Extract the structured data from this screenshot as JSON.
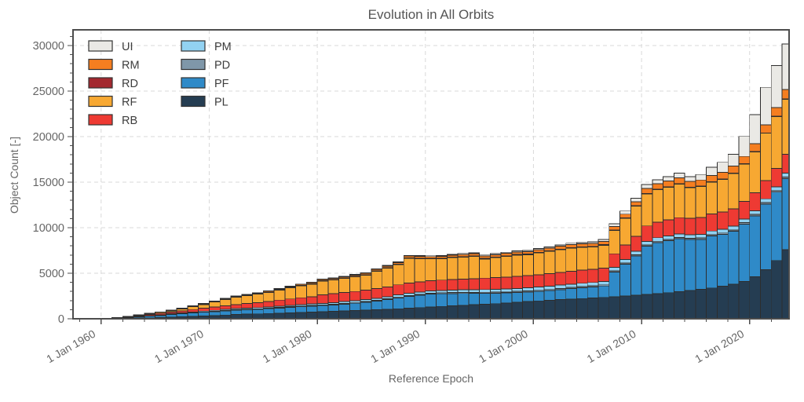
{
  "figure": {
    "title": "Evolution in All Orbits",
    "xlabel": "Reference Epoch",
    "ylabel": "Object Count [-]"
  },
  "chart_data": {
    "type": "bar",
    "subtype": "stacked-vertical-yearly",
    "title": "Evolution in All Orbits",
    "xlabel": "Reference Epoch",
    "ylabel": "Object Count [-]",
    "grid": "dashed, horizontal at 5000 steps and vertical at decades",
    "legend_position": "upper-left, two columns",
    "legend_order": [
      "UI",
      "RM",
      "RD",
      "RF",
      "RB",
      "PM",
      "PD",
      "PF",
      "PL"
    ],
    "stack_order_bottom_to_top": [
      "PL",
      "PF",
      "PD",
      "PM",
      "RB",
      "RF",
      "RD",
      "RM",
      "UI"
    ],
    "colors": {
      "UI": "#eae9e5",
      "RM": "#f57e20",
      "RD": "#a3282f",
      "RF": "#f7a832",
      "RB": "#ee3a33",
      "PM": "#92d2f2",
      "PD": "#7f97a9",
      "PF": "#2f8ac8",
      "PL": "#253d52",
      "bar_edge": "#2d2d2d",
      "axis": "#4d4d4d",
      "grid": "#d9d9d9",
      "text": "#666666"
    },
    "ylim": [
      0,
      31700
    ],
    "y_ticks": [
      0,
      5000,
      10000,
      15000,
      20000,
      25000,
      30000
    ],
    "y_minor_step": 1000,
    "x_ticks": [
      {
        "year": 1960,
        "label": "1 Jan 1960"
      },
      {
        "year": 1970,
        "label": "1 Jan 1970"
      },
      {
        "year": 1980,
        "label": "1 Jan 1980"
      },
      {
        "year": 1990,
        "label": "1 Jan 1990"
      },
      {
        "year": 2000,
        "label": "1 Jan 2000"
      },
      {
        "year": 2010,
        "label": "1 Jan 2010"
      },
      {
        "year": 2020,
        "label": "1 Jan 2020"
      }
    ],
    "x_minor_step_years": 2,
    "x_domain": [
      1957.4,
      2023.65
    ],
    "years": [
      1958,
      1959,
      1960,
      1961,
      1962,
      1963,
      1964,
      1965,
      1966,
      1967,
      1968,
      1969,
      1970,
      1971,
      1972,
      1973,
      1974,
      1975,
      1976,
      1977,
      1978,
      1979,
      1980,
      1981,
      1982,
      1983,
      1984,
      1985,
      1986,
      1987,
      1988,
      1989,
      1990,
      1991,
      1992,
      1993,
      1994,
      1995,
      1996,
      1997,
      1998,
      1999,
      2000,
      2001,
      2002,
      2003,
      2004,
      2005,
      2006,
      2007,
      2008,
      2009,
      2010,
      2011,
      2012,
      2013,
      2014,
      2015,
      2016,
      2017,
      2018,
      2019,
      2020,
      2021,
      2022,
      2023
    ],
    "series": [
      {
        "name": "PL",
        "values": [
          5,
          10,
          20,
          35,
          55,
          85,
          110,
          140,
          175,
          215,
          260,
          310,
          360,
          410,
          460,
          500,
          540,
          580,
          620,
          660,
          700,
          740,
          780,
          820,
          860,
          900,
          950,
          1000,
          1050,
          1100,
          1160,
          1230,
          1300,
          1360,
          1420,
          1480,
          1540,
          1600,
          1660,
          1730,
          1800,
          1880,
          1960,
          2030,
          2100,
          2160,
          2220,
          2280,
          2350,
          2420,
          2500,
          2580,
          2670,
          2770,
          2870,
          2980,
          3090,
          3220,
          3380,
          3570,
          3800,
          4100,
          4600,
          5400,
          6400,
          7600
        ]
      },
      {
        "name": "PF",
        "values": [
          0,
          0,
          5,
          20,
          60,
          140,
          190,
          240,
          290,
          340,
          380,
          400,
          420,
          450,
          470,
          480,
          490,
          520,
          560,
          600,
          630,
          650,
          660,
          700,
          750,
          800,
          850,
          950,
          1050,
          1200,
          1300,
          1350,
          1400,
          1380,
          1350,
          1300,
          1250,
          1200,
          1150,
          1100,
          1080,
          1060,
          1040,
          1060,
          1100,
          1150,
          1180,
          1200,
          1250,
          2700,
          3500,
          4300,
          5300,
          5600,
          5700,
          5800,
          5600,
          5500,
          5700,
          5700,
          5800,
          6300,
          6700,
          7200,
          7500,
          7800
        ]
      },
      {
        "name": "PD",
        "values": [
          0,
          0,
          0,
          5,
          10,
          15,
          20,
          25,
          30,
          35,
          40,
          45,
          50,
          55,
          60,
          60,
          65,
          65,
          70,
          70,
          75,
          75,
          80,
          80,
          85,
          85,
          90,
          90,
          95,
          95,
          100,
          100,
          100,
          105,
          105,
          110,
          110,
          110,
          115,
          115,
          120,
          120,
          120,
          125,
          125,
          125,
          130,
          130,
          130,
          135,
          135,
          135,
          140,
          140,
          140,
          140,
          145,
          145,
          145,
          145,
          150,
          150,
          150,
          150,
          150,
          150
        ]
      },
      {
        "name": "PM",
        "values": [
          0,
          0,
          5,
          10,
          15,
          25,
          35,
          45,
          55,
          65,
          75,
          85,
          100,
          110,
          120,
          125,
          130,
          140,
          145,
          150,
          155,
          160,
          165,
          175,
          185,
          195,
          205,
          215,
          225,
          235,
          245,
          250,
          255,
          265,
          275,
          285,
          295,
          305,
          315,
          325,
          335,
          345,
          355,
          360,
          365,
          370,
          370,
          375,
          375,
          380,
          380,
          385,
          385,
          390,
          390,
          395,
          395,
          400,
          405,
          410,
          410,
          415,
          420,
          420,
          425,
          430
        ]
      },
      {
        "name": "RB",
        "values": [
          2,
          5,
          10,
          25,
          45,
          70,
          100,
          130,
          170,
          210,
          260,
          310,
          350,
          400,
          450,
          500,
          550,
          600,
          650,
          700,
          750,
          800,
          950,
          970,
          1000,
          1020,
          1040,
          1060,
          1080,
          1100,
          1120,
          1120,
          1120,
          1140,
          1160,
          1180,
          1200,
          1250,
          1270,
          1290,
          1310,
          1330,
          1350,
          1370,
          1390,
          1410,
          1430,
          1450,
          1470,
          1500,
          1600,
          1650,
          1700,
          1720,
          1750,
          1780,
          1800,
          1850,
          1870,
          1890,
          1900,
          1920,
          1950,
          2000,
          2030,
          2070
        ]
      },
      {
        "name": "RF",
        "values": [
          0,
          5,
          10,
          15,
          40,
          70,
          90,
          120,
          150,
          230,
          320,
          430,
          560,
          690,
          790,
          870,
          930,
          1000,
          1100,
          1200,
          1300,
          1350,
          1480,
          1500,
          1550,
          1600,
          1650,
          1900,
          2050,
          2200,
          2700,
          2550,
          2400,
          2350,
          2400,
          2400,
          2450,
          2100,
          2200,
          2300,
          2350,
          2300,
          2400,
          2450,
          2500,
          2550,
          2500,
          2450,
          2500,
          2550,
          2900,
          3300,
          3500,
          3550,
          3600,
          3700,
          3350,
          3400,
          3500,
          3600,
          3900,
          4100,
          4500,
          5200,
          5700,
          6050
        ]
      },
      {
        "name": "RD",
        "values": [
          0,
          0,
          2,
          5,
          8,
          10,
          12,
          15,
          18,
          20,
          25,
          30,
          35,
          40,
          40,
          45,
          45,
          50,
          50,
          55,
          55,
          60,
          60,
          60,
          60,
          60,
          60,
          60,
          60,
          60,
          60,
          60,
          60,
          60,
          60,
          60,
          60,
          60,
          60,
          60,
          60,
          60,
          60,
          60,
          60,
          55,
          55,
          55,
          55,
          50,
          50,
          50,
          50,
          50,
          50,
          45,
          45,
          45,
          45,
          45,
          40,
          40,
          40,
          40,
          40,
          40
        ]
      },
      {
        "name": "RM",
        "values": [
          0,
          0,
          2,
          5,
          10,
          15,
          20,
          25,
          30,
          40,
          45,
          50,
          60,
          65,
          70,
          75,
          80,
          85,
          90,
          100,
          105,
          110,
          120,
          125,
          130,
          140,
          150,
          160,
          170,
          180,
          190,
          195,
          200,
          210,
          220,
          230,
          240,
          250,
          260,
          270,
          280,
          290,
          300,
          310,
          320,
          330,
          340,
          350,
          360,
          400,
          420,
          450,
          550,
          600,
          620,
          640,
          660,
          680,
          700,
          720,
          750,
          800,
          850,
          900,
          950,
          1030
        ]
      },
      {
        "name": "UI",
        "values": [
          0,
          0,
          0,
          0,
          5,
          10,
          10,
          15,
          15,
          20,
          20,
          25,
          25,
          30,
          30,
          35,
          35,
          40,
          40,
          45,
          45,
          50,
          50,
          55,
          55,
          60,
          60,
          65,
          65,
          70,
          70,
          75,
          80,
          85,
          90,
          95,
          100,
          105,
          110,
          115,
          120,
          125,
          130,
          135,
          140,
          145,
          150,
          160,
          200,
          300,
          350,
          400,
          430,
          450,
          470,
          500,
          520,
          600,
          900,
          1100,
          1300,
          2200,
          3200,
          4100,
          4600,
          5000
        ]
      }
    ],
    "totals_key_years": {
      "1970": 1960,
      "1980": 4345,
      "1990": 6915,
      "2000": 7715,
      "2007": 10435,
      "2010": 14725,
      "2019": 20025,
      "2023": 30170
    }
  }
}
